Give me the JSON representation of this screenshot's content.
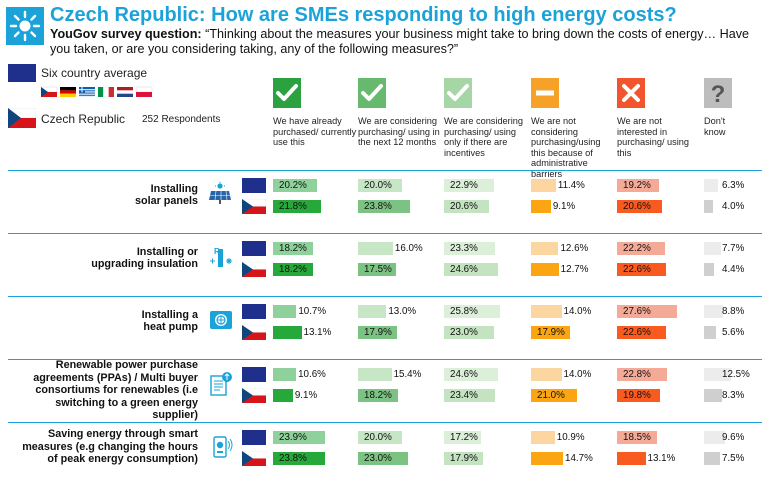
{
  "header": {
    "title": "Czech Republic: How are SMEs responding to high energy costs?",
    "question_prefix": "YouGov survey question:",
    "question_text": " “Thinking about the measures your business might take to bring down the costs of energy… Have you taken, or are you considering taking, any of the following measures?”"
  },
  "legend": {
    "six_country": "Six country average",
    "czech": "Czech Republic",
    "respondents": "252 Respondents"
  },
  "colors": {
    "brand": "#1ba3d9",
    "flag_eu": "#1f2f8c",
    "col_icon": [
      "#2ca140",
      "#67b96d",
      "#a6d6a5",
      "#f6a229",
      "#f2542d",
      "#bdbdbd"
    ],
    "avg_bar": [
      "#8fd19a",
      "#c6e6c5",
      "#dcefd9",
      "#fbd6a1",
      "#f5aa98",
      "#ececec"
    ],
    "cz_bar": [
      "#26a83a",
      "#7cc283",
      "#c4e4c1",
      "#fca513",
      "#f85a1f",
      "#cfcfcf"
    ]
  },
  "chart_data": {
    "type": "bar",
    "title": "Czech Republic: How are SMEs responding to high energy costs?",
    "categories": [
      "We have already purchased/ currently use this",
      "We are considering purchasing/ using in the next 12 months",
      "We are considering purchasing/ using only if there are incentives",
      "We are not considering purchasing/using this because of administrative barriers",
      "We are not interested in purchasing/ using this",
      "Don't know"
    ],
    "column_icons": [
      "check-icon",
      "check-icon",
      "check-icon",
      "minus-icon",
      "cross-icon",
      "question-icon"
    ],
    "measures": [
      {
        "label": [
          "Installing",
          "solar panels"
        ],
        "icon": "solar-panel-icon",
        "series": [
          {
            "name": "Six country average",
            "values": [
              20.2,
              20.0,
              22.9,
              11.4,
              19.2,
              6.3
            ],
            "labels": [
              "20.2%",
              "20.0%",
              "22.9%",
              "11.4%",
              "19.2%",
              "6.3%"
            ]
          },
          {
            "name": "Czech Republic",
            "values": [
              21.8,
              23.8,
              20.6,
              9.1,
              20.6,
              4.0
            ],
            "labels": [
              "21.8%",
              "23.8%",
              "20.6%",
              "9.1%",
              "20.6%",
              "4.0%"
            ]
          }
        ]
      },
      {
        "label": [
          "Installing or",
          "upgrading insulation"
        ],
        "icon": "insulation-icon",
        "series": [
          {
            "name": "Six country average",
            "values": [
              18.2,
              16.0,
              23.3,
              12.6,
              22.2,
              7.7
            ],
            "labels": [
              "18.2%",
              "16.0%",
              "23.3%",
              "12.6%",
              "22.2%",
              "7.7%"
            ]
          },
          {
            "name": "Czech Republic",
            "values": [
              18.2,
              17.5,
              24.6,
              12.7,
              22.6,
              4.4
            ],
            "labels": [
              "18.2%",
              "17.5%",
              "24.6%",
              "12.7%",
              "22.6%",
              "4.4%"
            ]
          }
        ]
      },
      {
        "label": [
          "Installing a",
          "heat pump"
        ],
        "icon": "heat-pump-icon",
        "series": [
          {
            "name": "Six country average",
            "values": [
              10.7,
              13.0,
              25.8,
              14.0,
              27.6,
              8.8
            ],
            "labels": [
              "10.7%",
              "13.0%",
              "25.8%",
              "14.0%",
              "27.6%",
              "8.8%"
            ]
          },
          {
            "name": "Czech Republic",
            "values": [
              13.1,
              17.9,
              23.0,
              17.9,
              22.6,
              5.6
            ],
            "labels": [
              "13.1%",
              "17.9%",
              "23.0%",
              "17.9%",
              "22.6%",
              "5.6%"
            ]
          }
        ]
      },
      {
        "label": [
          "Renewable power purchase",
          "agreements (PPAs) / Multi buyer",
          "consortiums for renewables (i.e",
          "switching to a green energy supplier)"
        ],
        "icon": "ppa-document-icon",
        "series": [
          {
            "name": "Six country average",
            "values": [
              10.6,
              15.4,
              24.6,
              14.0,
              22.8,
              12.5
            ],
            "labels": [
              "10.6%",
              "15.4%",
              "24.6%",
              "14.0%",
              "22.8%",
              "12.5%"
            ]
          },
          {
            "name": "Czech Republic",
            "values": [
              9.1,
              18.2,
              23.4,
              21.0,
              19.8,
              8.3
            ],
            "labels": [
              "9.1%",
              "18.2%",
              "23.4%",
              "21.0%",
              "19.8%",
              "8.3%"
            ]
          }
        ]
      },
      {
        "label": [
          "Saving energy through smart",
          "measures (e.g changing the hours",
          "of peak energy consumption)"
        ],
        "icon": "smart-meter-icon",
        "series": [
          {
            "name": "Six country average",
            "values": [
              23.9,
              20.0,
              17.2,
              10.9,
              18.5,
              9.6
            ],
            "labels": [
              "23.9%",
              "20.0%",
              "17.2%",
              "10.9%",
              "18.5%",
              "9.6%"
            ]
          },
          {
            "name": "Czech Republic",
            "values": [
              23.8,
              23.0,
              17.9,
              14.7,
              13.1,
              7.5
            ],
            "labels": [
              "23.8%",
              "23.0%",
              "17.9%",
              "14.7%",
              "13.1%",
              "7.5%"
            ]
          }
        ]
      }
    ]
  }
}
